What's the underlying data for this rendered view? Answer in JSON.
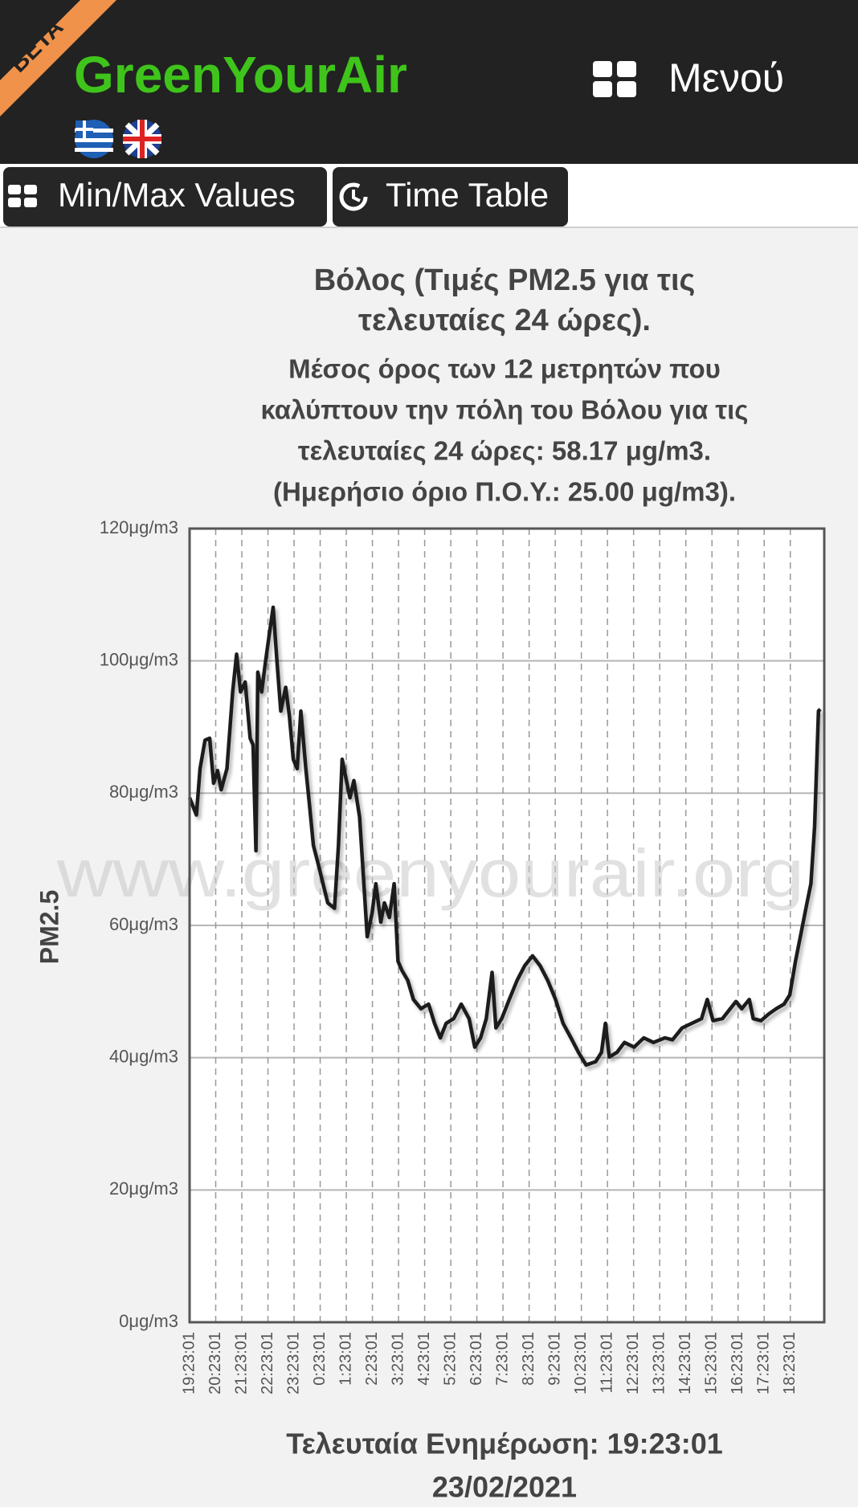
{
  "header": {
    "beta": "BETA",
    "brand": "GreenYourAir",
    "menu": "Μενού"
  },
  "buttons": [
    "Min/Max Values",
    "Time Table"
  ],
  "chart_data": {
    "type": "line",
    "title": [
      "Βόλος (Τιμές PM2.5 για τις",
      "τελευταίες 24 ώρες)."
    ],
    "subtitle": [
      "Μέσος όρος των 12 μετρητών που",
      "καλύπτουν την πόλη του Βόλου για τις",
      "τελευταίες 24 ώρες: 58.17 μg/m3.",
      "(Ημερήσιο όριο Π.Ο.Υ.: 25.00 μg/m3)."
    ],
    "ylabel": "PM2.5",
    "watermark": "www.greenyourair.org",
    "footer": [
      "Τελευταία Ενημέρωση: 19:23:01",
      "23/02/2021"
    ],
    "color": "#1e1e1e",
    "grid": true,
    "xlim": [
      0,
      24.3
    ],
    "ylim": [
      0,
      120
    ],
    "yticks": [
      {
        "value": 0,
        "label": "0μg/m3"
      },
      {
        "value": 20,
        "label": "20μg/m3"
      },
      {
        "value": 40,
        "label": "40μg/m3"
      },
      {
        "value": 60,
        "label": "60μg/m3"
      },
      {
        "value": 80,
        "label": "80μg/m3"
      },
      {
        "value": 100,
        "label": "100μg/m3"
      },
      {
        "value": 120,
        "label": "120μg/m3"
      }
    ],
    "xticks": [
      {
        "value": 0,
        "label": "19:23:01"
      },
      {
        "value": 1,
        "label": "20:23:01"
      },
      {
        "value": 2,
        "label": "21:23:01"
      },
      {
        "value": 3,
        "label": "22:23:01"
      },
      {
        "value": 4,
        "label": "23:23:01"
      },
      {
        "value": 5,
        "label": "0:23:01"
      },
      {
        "value": 6,
        "label": "1:23:01"
      },
      {
        "value": 7,
        "label": "2:23:01"
      },
      {
        "value": 8,
        "label": "3:23:01"
      },
      {
        "value": 9,
        "label": "4:23:01"
      },
      {
        "value": 10,
        "label": "5:23:01"
      },
      {
        "value": 11,
        "label": "6:23:01"
      },
      {
        "value": 12,
        "label": "7:23:01"
      },
      {
        "value": 13,
        "label": "8:23:01"
      },
      {
        "value": 14,
        "label": "9:23:01"
      },
      {
        "value": 15,
        "label": "10:23:01"
      },
      {
        "value": 16,
        "label": "11:23:01"
      },
      {
        "value": 17,
        "label": "12:23:01"
      },
      {
        "value": 18,
        "label": "13:23:01"
      },
      {
        "value": 19,
        "label": "14:23:01"
      },
      {
        "value": 20,
        "label": "15:23:01"
      },
      {
        "value": 21,
        "label": "16:23:01"
      },
      {
        "value": 22,
        "label": "17:23:01"
      },
      {
        "value": 23,
        "label": "18:23:01"
      }
    ],
    "x": [
      0,
      0.26,
      0.4,
      0.59,
      0.77,
      0.92,
      1.07,
      1.21,
      1.43,
      1.65,
      1.8,
      1.95,
      2.13,
      2.32,
      2.43,
      2.54,
      2.61,
      2.76,
      2.9,
      3.05,
      3.2,
      3.35,
      3.49,
      3.68,
      3.82,
      3.97,
      4.12,
      4.26,
      4.45,
      4.6,
      4.74,
      4.93,
      5.11,
      5.29,
      5.55,
      5.7,
      5.84,
      5.99,
      6.14,
      6.29,
      6.51,
      6.65,
      6.8,
      6.99,
      7.13,
      7.32,
      7.46,
      7.65,
      7.83,
      7.98,
      8.13,
      8.35,
      8.57,
      8.86,
      9.15,
      9.38,
      9.6,
      9.82,
      10.11,
      10.4,
      10.7,
      10.92,
      11.14,
      11.36,
      11.58,
      11.73,
      11.95,
      12.24,
      12.54,
      12.83,
      13.13,
      13.42,
      13.71,
      14.01,
      14.3,
      14.6,
      14.89,
      15.18,
      15.55,
      15.77,
      15.92,
      16.07,
      16.36,
      16.65,
      17.02,
      17.39,
      17.76,
      18.2,
      18.49,
      18.86,
      19.23,
      19.6,
      19.82,
      20.04,
      20.4,
      20.7,
      20.92,
      21.14,
      21.43,
      21.58,
      21.88,
      22.17,
      22.46,
      22.76,
      22.98,
      23.2,
      23.42,
      23.64,
      23.79,
      23.93,
      24.08,
      24.15
    ],
    "values": [
      79.3,
      76.7,
      83.7,
      88,
      88.3,
      81.5,
      83.4,
      80.5,
      83.7,
      95.3,
      101,
      95.3,
      96.8,
      88.3,
      87.3,
      71.3,
      98.3,
      95.3,
      99.7,
      104,
      108.1,
      99.7,
      92.4,
      96,
      91.7,
      85.1,
      83.7,
      92.4,
      83.7,
      77.9,
      72.1,
      69.2,
      66.3,
      63.4,
      62.6,
      72.1,
      85.1,
      82.2,
      79.3,
      81.9,
      76.4,
      67.7,
      58.3,
      61.9,
      66.3,
      60.5,
      63.4,
      61.2,
      66.3,
      54.6,
      53.2,
      51.7,
      48.8,
      47.4,
      48.1,
      45.2,
      43,
      45.2,
      45.9,
      48.1,
      45.9,
      41.6,
      43,
      45.9,
      52.9,
      44.5,
      45.9,
      48.8,
      51.7,
      53.9,
      55.4,
      53.9,
      51.7,
      48.8,
      45.2,
      43,
      40.8,
      38.9,
      39.4,
      40.8,
      45.2,
      40.1,
      40.8,
      42.3,
      41.6,
      43,
      42.3,
      43,
      42.7,
      44.5,
      45.2,
      45.9,
      48.8,
      45.6,
      45.9,
      47.4,
      48.5,
      47.4,
      48.8,
      45.9,
      45.6,
      46.6,
      47.4,
      48.1,
      49.5,
      54.6,
      59,
      63.4,
      66.3,
      75,
      92.4,
      92.7
    ]
  }
}
